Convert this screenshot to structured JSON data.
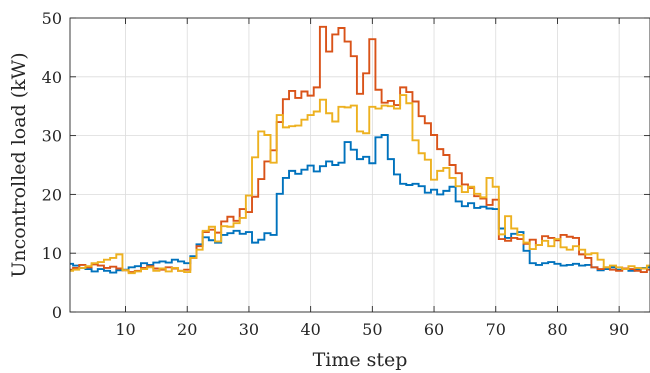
{
  "chart_data": {
    "type": "line",
    "step": true,
    "xlabel": "Time step",
    "ylabel": "Uncontrolled load (kW)",
    "xlim": [
      1,
      95
    ],
    "ylim": [
      0,
      50
    ],
    "xticks": [
      10,
      20,
      30,
      40,
      50,
      60,
      70,
      80,
      90
    ],
    "yticks": [
      0,
      10,
      20,
      30,
      40,
      50
    ],
    "grid": true,
    "x_start": 1,
    "series": [
      {
        "color": "#0072BD",
        "values": [
          8.2,
          7.9,
          7.5,
          7.3,
          6.9,
          7.3,
          7.0,
          6.7,
          7.1,
          7.2,
          7.6,
          7.8,
          8.3,
          8.0,
          8.4,
          8.6,
          8.4,
          8.9,
          8.6,
          8.3,
          9.5,
          11.5,
          12.7,
          12.2,
          11.8,
          13.1,
          13.4,
          13.8,
          13.3,
          13.6,
          11.8,
          12.3,
          13.4,
          13.1,
          20.1,
          22.8,
          24.0,
          23.5,
          24.2,
          24.9,
          23.9,
          24.8,
          25.6,
          25.0,
          25.4,
          28.9,
          27.6,
          26.0,
          26.4,
          25.3,
          29.7,
          30.1,
          26.0,
          23.4,
          21.8,
          21.6,
          21.8,
          21.4,
          20.3,
          20.8,
          20.0,
          20.6,
          21.3,
          18.8,
          18.0,
          18.5,
          17.7,
          17.9,
          17.6,
          17.5,
          14.2,
          12.6,
          13.3,
          13.6,
          10.4,
          8.3,
          8.0,
          8.3,
          8.5,
          8.2,
          7.9,
          8.0,
          8.2,
          7.9,
          8.0,
          7.6,
          7.1,
          7.3,
          7.6,
          7.2,
          7.4,
          7.0,
          7.3,
          7.5,
          7.6
        ]
      },
      {
        "color": "#D95319",
        "values": [
          7.2,
          7.5,
          8.0,
          7.6,
          8.1,
          7.9,
          7.5,
          7.7,
          7.4,
          7.1,
          6.8,
          7.0,
          7.5,
          7.8,
          7.4,
          7.2,
          7.6,
          7.4,
          7.0,
          7.2,
          9.2,
          11.2,
          13.6,
          14.0,
          13.5,
          15.4,
          16.2,
          15.5,
          17.5,
          17.0,
          19.6,
          22.6,
          25.6,
          27.5,
          32.3,
          36.2,
          37.6,
          36.4,
          37.5,
          36.8,
          38.2,
          48.5,
          44.3,
          47.2,
          48.3,
          46.0,
          43.5,
          37.1,
          40.6,
          46.4,
          37.8,
          35.6,
          35.9,
          35.2,
          38.2,
          37.4,
          35.8,
          33.3,
          32.1,
          30.1,
          27.7,
          26.7,
          25.0,
          23.6,
          21.7,
          21.1,
          19.7,
          19.3,
          18.2,
          19.1,
          12.4,
          12.1,
          12.6,
          12.4,
          11.6,
          12.3,
          11.4,
          12.9,
          12.6,
          12.2,
          13.1,
          12.8,
          12.6,
          9.8,
          9.2,
          7.6,
          7.3,
          7.6,
          7.2,
          7.0,
          7.4,
          7.3,
          7.0,
          6.8,
          7.2
        ]
      },
      {
        "color": "#EDB120",
        "values": [
          7.0,
          7.2,
          7.5,
          7.8,
          8.3,
          8.5,
          8.9,
          9.2,
          9.8,
          7.1,
          6.6,
          6.9,
          7.3,
          7.6,
          7.0,
          7.4,
          6.9,
          7.5,
          7.0,
          6.8,
          9.2,
          10.6,
          13.8,
          14.5,
          12.0,
          14.6,
          14.5,
          15.1,
          16.0,
          19.8,
          26.3,
          30.7,
          30.1,
          25.4,
          33.5,
          31.4,
          31.6,
          31.7,
          32.7,
          33.5,
          34.1,
          36.1,
          33.8,
          32.4,
          34.9,
          34.8,
          35.1,
          30.7,
          30.4,
          34.9,
          34.6,
          35.1,
          35.0,
          34.6,
          36.9,
          35.5,
          29.2,
          27.0,
          25.9,
          22.5,
          24.0,
          24.5,
          22.8,
          21.4,
          20.4,
          21.3,
          20.1,
          19.5,
          22.8,
          21.3,
          13.2,
          16.3,
          14.2,
          13.1,
          11.8,
          10.7,
          11.4,
          12.1,
          11.2,
          12.4,
          11.0,
          10.6,
          11.2,
          10.6,
          9.8,
          10.0,
          8.9,
          7.6,
          7.9,
          7.6,
          7.3,
          7.8,
          7.5,
          7.4,
          7.9
        ]
      }
    ]
  }
}
